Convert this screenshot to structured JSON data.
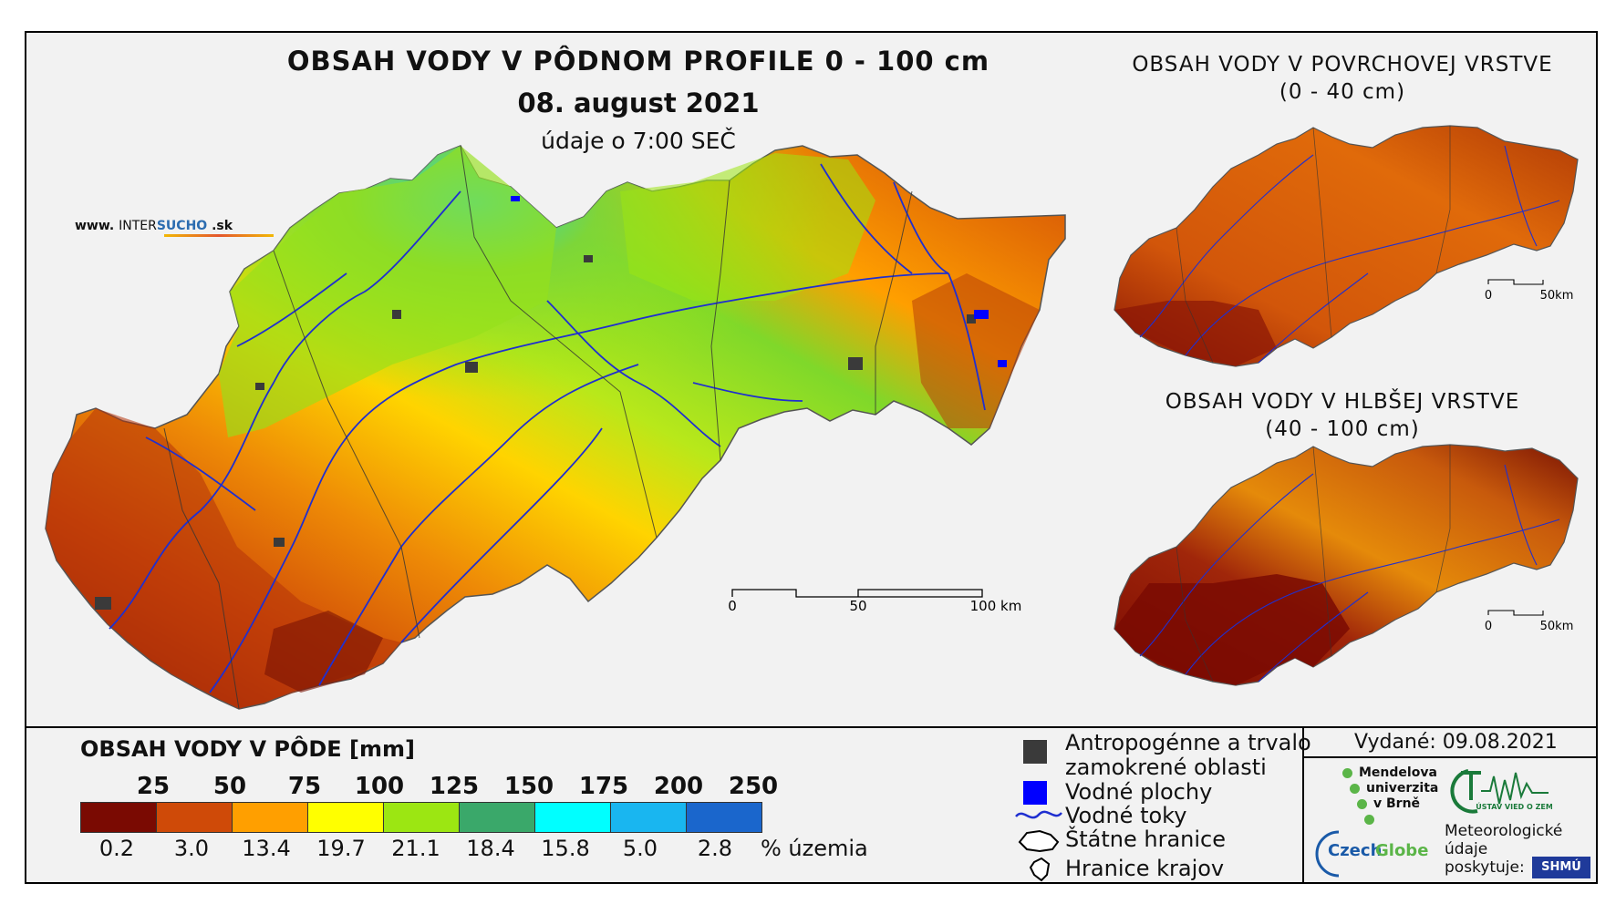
{
  "header": {
    "title": "OBSAH VODY V PÔDNOM PROFILE 0 - 100 cm",
    "date": "08. august 2021",
    "time_note": "údaje o 7:00 SEČ",
    "website_prefix": "www.",
    "website_inter": "INTER",
    "website_sucho": "SUCHO",
    "website_suffix": ".sk"
  },
  "main_map": {
    "scale_labels": [
      "0",
      "50",
      "100 km"
    ]
  },
  "inset_surface": {
    "title_line1": "OBSAH VODY V POVRCHOVEJ VRSTVE",
    "title_line2": "(0 - 40 cm)",
    "scale_labels": [
      "0",
      "50km"
    ]
  },
  "inset_deep": {
    "title_line1": "OBSAH VODY V HLBŠEJ VRSTVE",
    "title_line2": "(40 - 100 cm)",
    "scale_labels": [
      "0",
      "50km"
    ]
  },
  "legend": {
    "title": "OBSAH VODY V PÔDE [mm]",
    "thresholds": [
      "25",
      "50",
      "75",
      "100",
      "125",
      "150",
      "175",
      "200",
      "250"
    ],
    "classes": [
      {
        "color": "#7a0a02",
        "percent": "0.2"
      },
      {
        "color": "#cf4a08",
        "percent": "3.0"
      },
      {
        "color": "#ff9f00",
        "percent": "13.4"
      },
      {
        "color": "#ffff00",
        "percent": "19.7"
      },
      {
        "color": "#9ce612",
        "percent": "21.1"
      },
      {
        "color": "#3aa86a",
        "percent": "18.4"
      },
      {
        "color": "#00ffff",
        "percent": "15.8"
      },
      {
        "color": "#19b6f0",
        "percent": "5.0"
      },
      {
        "color": "#1a66cc",
        "percent": "2.8"
      }
    ],
    "percent_label": "% územia"
  },
  "symbols": {
    "anthropogenic_line1": "Antropogénne a trvalo",
    "anthropogenic_line2": "zamokrené oblasti",
    "water_bodies": "Vodné plochy",
    "streams": "Vodné toky",
    "state_border": "Štátne hranice",
    "regions": "Hranice krajov",
    "anthropogenic_color": "#3a3a3a",
    "water_color": "#0000ff",
    "stream_color": "#1f2fd0"
  },
  "credits": {
    "issued": "Vydané: 09.08.2021",
    "mendel": [
      "Mendelova",
      "univerzita",
      "v Brně"
    ],
    "czechglobe_czech": "Czech",
    "czechglobe_globe": "Globe",
    "uvoz": "ÚSTAV VIED O ZEMI",
    "meteo": [
      "Meteorologické",
      "údaje",
      "poskytuje:"
    ],
    "shmu": "SHMÚ"
  }
}
